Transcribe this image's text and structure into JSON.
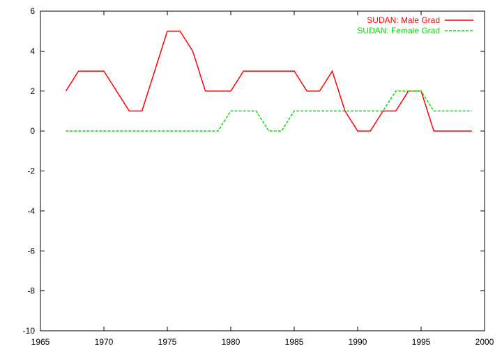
{
  "chart_data": {
    "type": "line",
    "title": "",
    "xlabel": "",
    "ylabel": "",
    "xlim": [
      1965,
      2000
    ],
    "ylim": [
      -10,
      6
    ],
    "x_ticks": [
      1965,
      1970,
      1975,
      1980,
      1985,
      1990,
      1995,
      2000
    ],
    "y_ticks": [
      -10,
      -8,
      -6,
      -4,
      -2,
      0,
      2,
      4,
      6
    ],
    "grid": false,
    "legend_position": "top-right",
    "x": [
      1967,
      1968,
      1969,
      1970,
      1971,
      1972,
      1973,
      1974,
      1975,
      1976,
      1977,
      1978,
      1979,
      1980,
      1981,
      1982,
      1983,
      1984,
      1985,
      1986,
      1987,
      1988,
      1989,
      1990,
      1991,
      1992,
      1993,
      1994,
      1995,
      1996,
      1997,
      1998,
      1999
    ],
    "series": [
      {
        "name": "SUDAN: Male Grad",
        "color": "#ff0000",
        "dash": "solid",
        "values": [
          2,
          3,
          3,
          3,
          2,
          1,
          1,
          3,
          5,
          5,
          4,
          2,
          2,
          2,
          3,
          3,
          3,
          3,
          3,
          2,
          2,
          3,
          1,
          0,
          0,
          1,
          1,
          2,
          2,
          0,
          0,
          0,
          0
        ]
      },
      {
        "name": "SUDAN: Female Grad",
        "color": "#00dd00",
        "dash": "dashed",
        "values": [
          0,
          0,
          0,
          0,
          0,
          0,
          0,
          0,
          0,
          0,
          0,
          0,
          0,
          1,
          1,
          1,
          0,
          0,
          1,
          1,
          1,
          1,
          1,
          1,
          1,
          1,
          2,
          2,
          2,
          1,
          1,
          1,
          1
        ]
      }
    ]
  }
}
